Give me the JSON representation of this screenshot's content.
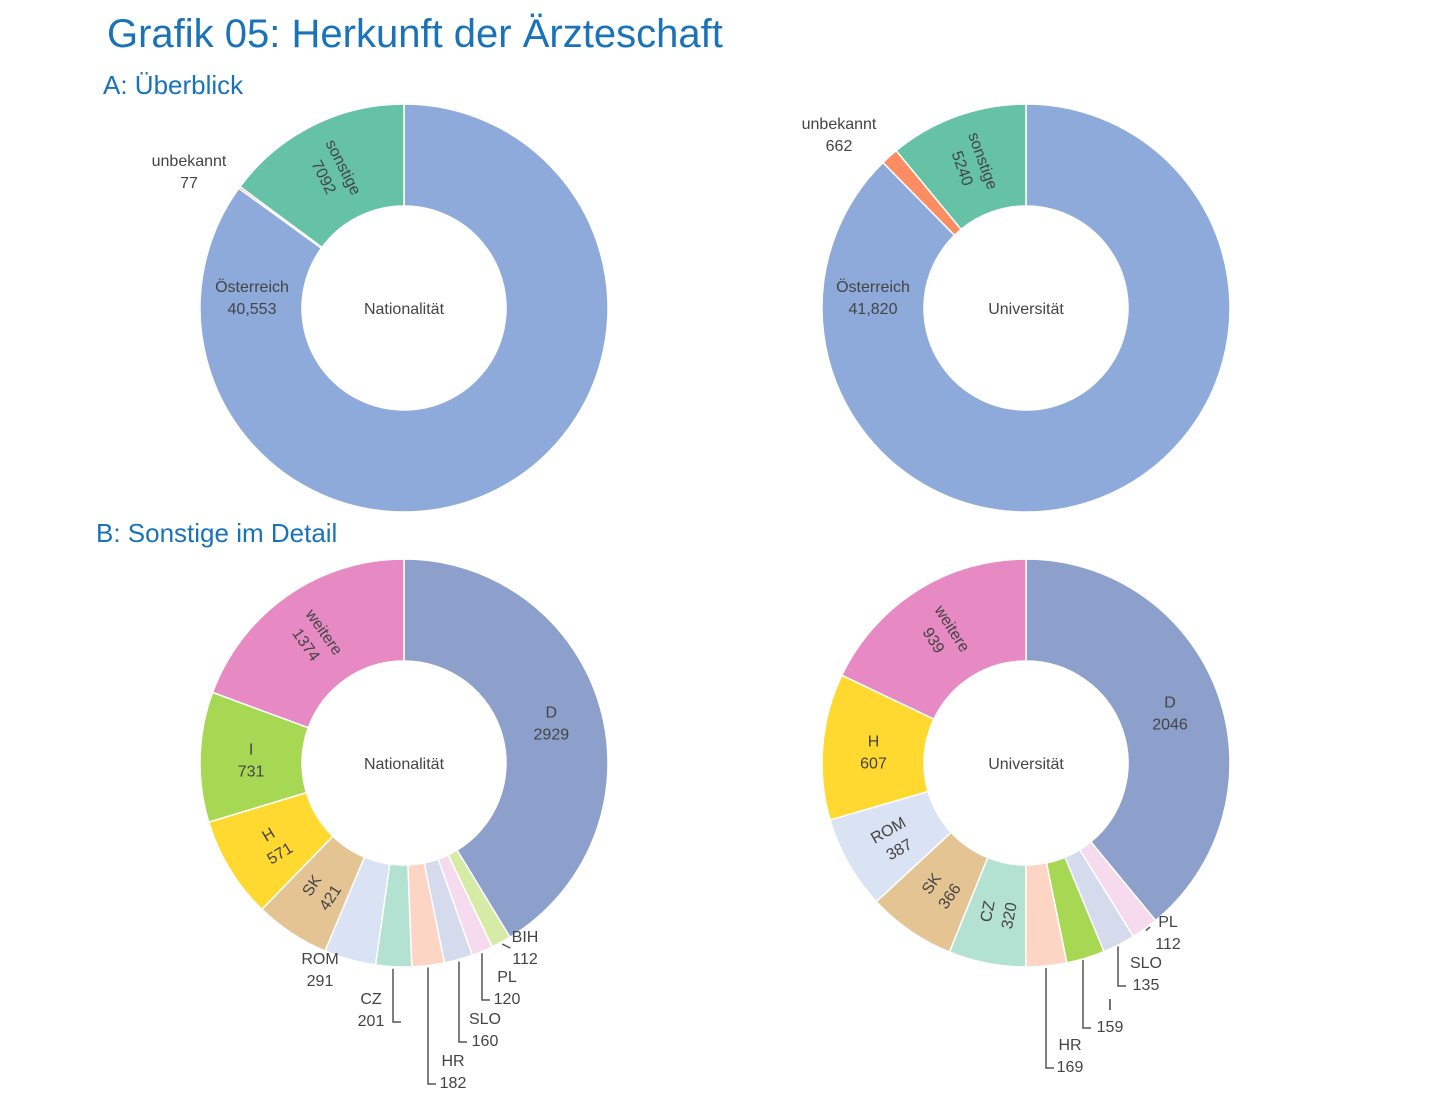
{
  "title": "Grafik 05: Herkunft der Ärzteschaft",
  "section_a": "A: Überblick",
  "section_b": "B: Sonstige im Detail",
  "chart_data": [
    {
      "type": "pie",
      "variant": "donut",
      "center_label": "Nationalität",
      "slices": [
        {
          "label": "Österreich",
          "value": 40553,
          "value_text": "40,553",
          "color": "#8daadb"
        },
        {
          "label": "unbekannt",
          "value": 77,
          "value_text": "77",
          "color": "#fc8d62"
        },
        {
          "label": "sonstige",
          "value": 7092,
          "value_text": "7092",
          "color": "#66c2a5"
        }
      ]
    },
    {
      "type": "pie",
      "variant": "donut",
      "center_label": "Universität",
      "slices": [
        {
          "label": "Österreich",
          "value": 41820,
          "value_text": "41,820",
          "color": "#8daadb"
        },
        {
          "label": "unbekannt",
          "value": 662,
          "value_text": "662",
          "color": "#fc8d62"
        },
        {
          "label": "sonstige",
          "value": 5240,
          "value_text": "5240",
          "color": "#66c2a5"
        }
      ]
    },
    {
      "type": "pie",
      "variant": "donut",
      "center_label": "Nationalität",
      "slices": [
        {
          "label": "D",
          "value": 2929,
          "value_text": "2929",
          "color": "#8da0cb"
        },
        {
          "label": "BIH",
          "value": 112,
          "value_text": "112",
          "color": "#d5eba6"
        },
        {
          "label": "PL",
          "value": 120,
          "value_text": "120",
          "color": "#f6dbef"
        },
        {
          "label": "SLO",
          "value": 160,
          "value_text": "160",
          "color": "#d5dbec"
        },
        {
          "label": "HR",
          "value": 182,
          "value_text": "182",
          "color": "#fdd5c4"
        },
        {
          "label": "CZ",
          "value": 201,
          "value_text": "201",
          "color": "#b3e2d2"
        },
        {
          "label": "ROM",
          "value": 291,
          "value_text": "291",
          "color": "#d9e3f4"
        },
        {
          "label": "SK",
          "value": 421,
          "value_text": "421",
          "color": "#e5c494"
        },
        {
          "label": "H",
          "value": 571,
          "value_text": "571",
          "color": "#ffd92f"
        },
        {
          "label": "I",
          "value": 731,
          "value_text": "731",
          "color": "#a6d854"
        },
        {
          "label": "weitere",
          "value": 1374,
          "value_text": "1374",
          "color": "#e78ac3"
        }
      ]
    },
    {
      "type": "pie",
      "variant": "donut",
      "center_label": "Universität",
      "slices": [
        {
          "label": "D",
          "value": 2046,
          "value_text": "2046",
          "color": "#8da0cb"
        },
        {
          "label": "PL",
          "value": 112,
          "value_text": "112",
          "color": "#f6dbef"
        },
        {
          "label": "SLO",
          "value": 135,
          "value_text": "135",
          "color": "#d5dbec"
        },
        {
          "label": "I",
          "value": 159,
          "value_text": "159",
          "color": "#a6d854"
        },
        {
          "label": "HR",
          "value": 169,
          "value_text": "169",
          "color": "#fdd5c4"
        },
        {
          "label": "CZ",
          "value": 320,
          "value_text": "320",
          "color": "#b3e2d2"
        },
        {
          "label": "SK",
          "value": 366,
          "value_text": "366",
          "color": "#e5c494"
        },
        {
          "label": "ROM",
          "value": 387,
          "value_text": "387",
          "color": "#d9e3f4"
        },
        {
          "label": "H",
          "value": 607,
          "value_text": "607",
          "color": "#ffd92f"
        },
        {
          "label": "weitere",
          "value": 939,
          "value_text": "939",
          "color": "#e78ac3"
        }
      ]
    }
  ]
}
